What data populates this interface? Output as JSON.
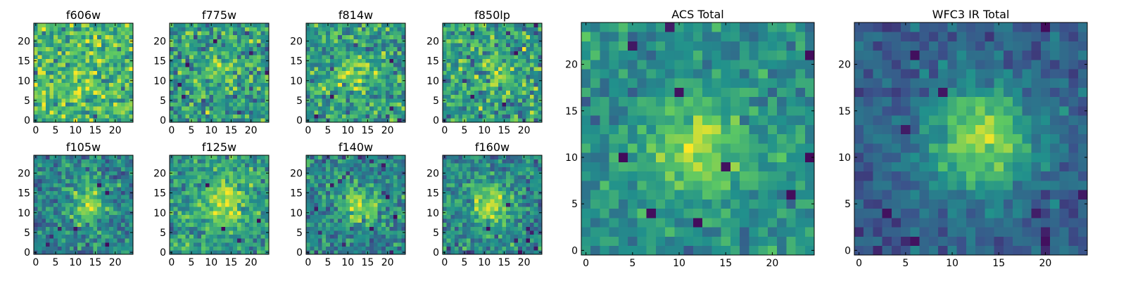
{
  "figure": {
    "colormap_stops": [
      "#440154",
      "#3b528b",
      "#21918c",
      "#5ec962",
      "#fde725"
    ]
  },
  "chart_data": [
    {
      "type": "heatmap",
      "title": "f606w",
      "xlim": [
        0,
        25
      ],
      "ylim": [
        0,
        25
      ],
      "xticks": [
        "0",
        "5",
        "10",
        "15",
        "20"
      ],
      "yticks": [
        "0",
        "5",
        "10",
        "15",
        "20"
      ],
      "source_center": [
        12,
        12
      ],
      "source_strength": 0.08,
      "source_width": 4.0,
      "noise": 0.16,
      "base": 0.66,
      "seed": 11,
      "dropouts": 0
    },
    {
      "type": "heatmap",
      "title": "f775w",
      "xlim": [
        0,
        25
      ],
      "ylim": [
        0,
        25
      ],
      "xticks": [
        "0",
        "5",
        "10",
        "15",
        "20"
      ],
      "yticks": [
        "0",
        "5",
        "10",
        "15",
        "20"
      ],
      "source_center": [
        13,
        13
      ],
      "source_strength": 0.2,
      "source_width": 3.0,
      "noise": 0.15,
      "base": 0.55,
      "seed": 23,
      "dropouts": 6
    },
    {
      "type": "heatmap",
      "title": "f814w",
      "xlim": [
        0,
        25
      ],
      "ylim": [
        0,
        25
      ],
      "xticks": [
        "0",
        "5",
        "10",
        "15",
        "20"
      ],
      "yticks": [
        "0",
        "5",
        "10",
        "15",
        "20"
      ],
      "source_center": [
        12,
        12
      ],
      "source_strength": 0.26,
      "source_width": 3.2,
      "noise": 0.15,
      "base": 0.55,
      "seed": 37,
      "dropouts": 5
    },
    {
      "type": "heatmap",
      "title": "f850lp",
      "xlim": [
        0,
        25
      ],
      "ylim": [
        0,
        25
      ],
      "xticks": [
        "0",
        "5",
        "10",
        "15",
        "20"
      ],
      "yticks": [
        "0",
        "5",
        "10",
        "15",
        "20"
      ],
      "source_center": [
        14,
        12
      ],
      "source_strength": 0.2,
      "source_width": 3.2,
      "noise": 0.15,
      "base": 0.55,
      "seed": 41,
      "dropouts": 5
    },
    {
      "type": "heatmap",
      "title": "f105w",
      "xlim": [
        0,
        25
      ],
      "ylim": [
        0,
        25
      ],
      "xticks": [
        "0",
        "5",
        "10",
        "15",
        "20"
      ],
      "yticks": [
        "0",
        "5",
        "10",
        "15",
        "20"
      ],
      "source_center": [
        13,
        12
      ],
      "source_strength": 0.4,
      "source_width": 3.0,
      "noise": 0.13,
      "base": 0.45,
      "seed": 53,
      "dropouts": 6
    },
    {
      "type": "heatmap",
      "title": "f125w",
      "xlim": [
        0,
        25
      ],
      "ylim": [
        0,
        25
      ],
      "xticks": [
        "0",
        "5",
        "10",
        "15",
        "20"
      ],
      "yticks": [
        "0",
        "5",
        "10",
        "15",
        "20"
      ],
      "source_center": [
        13,
        13
      ],
      "source_strength": 0.35,
      "source_width": 4.0,
      "noise": 0.12,
      "base": 0.55,
      "seed": 67,
      "dropouts": 4
    },
    {
      "type": "heatmap",
      "title": "f140w",
      "xlim": [
        0,
        25
      ],
      "ylim": [
        0,
        25
      ],
      "xticks": [
        "0",
        "5",
        "10",
        "15",
        "20"
      ],
      "yticks": [
        "0",
        "5",
        "10",
        "15",
        "20"
      ],
      "source_center": [
        13,
        12
      ],
      "source_strength": 0.4,
      "source_width": 3.2,
      "noise": 0.13,
      "base": 0.45,
      "seed": 79,
      "dropouts": 7
    },
    {
      "type": "heatmap",
      "title": "f160w",
      "xlim": [
        0,
        25
      ],
      "ylim": [
        0,
        25
      ],
      "xticks": [
        "0",
        "5",
        "10",
        "15",
        "20"
      ],
      "yticks": [
        "0",
        "5",
        "10",
        "15",
        "20"
      ],
      "source_center": [
        12,
        12
      ],
      "source_strength": 0.45,
      "source_width": 3.5,
      "noise": 0.12,
      "base": 0.45,
      "seed": 97,
      "dropouts": 8
    },
    {
      "type": "heatmap",
      "title": "ACS Total",
      "xlim": [
        0,
        25
      ],
      "ylim": [
        0,
        25
      ],
      "xticks": [
        "0",
        "5",
        "10",
        "15",
        "20"
      ],
      "yticks": [
        "0",
        "5",
        "10",
        "15",
        "20"
      ],
      "source_center": [
        12,
        11
      ],
      "source_strength": 0.38,
      "source_width": 3.5,
      "noise": 0.09,
      "base": 0.5,
      "seed": 101,
      "dropouts": 10
    },
    {
      "type": "heatmap",
      "title": "WFC3 IR Total",
      "xlim": [
        0,
        25
      ],
      "ylim": [
        0,
        25
      ],
      "xticks": [
        "0",
        "5",
        "10",
        "15",
        "20"
      ],
      "yticks": [
        "0",
        "5",
        "10",
        "15",
        "20"
      ],
      "source_center": [
        13,
        12
      ],
      "source_strength": 0.55,
      "source_width": 4.0,
      "noise": 0.07,
      "base": 0.3,
      "seed": 113,
      "dropouts": 10
    }
  ]
}
